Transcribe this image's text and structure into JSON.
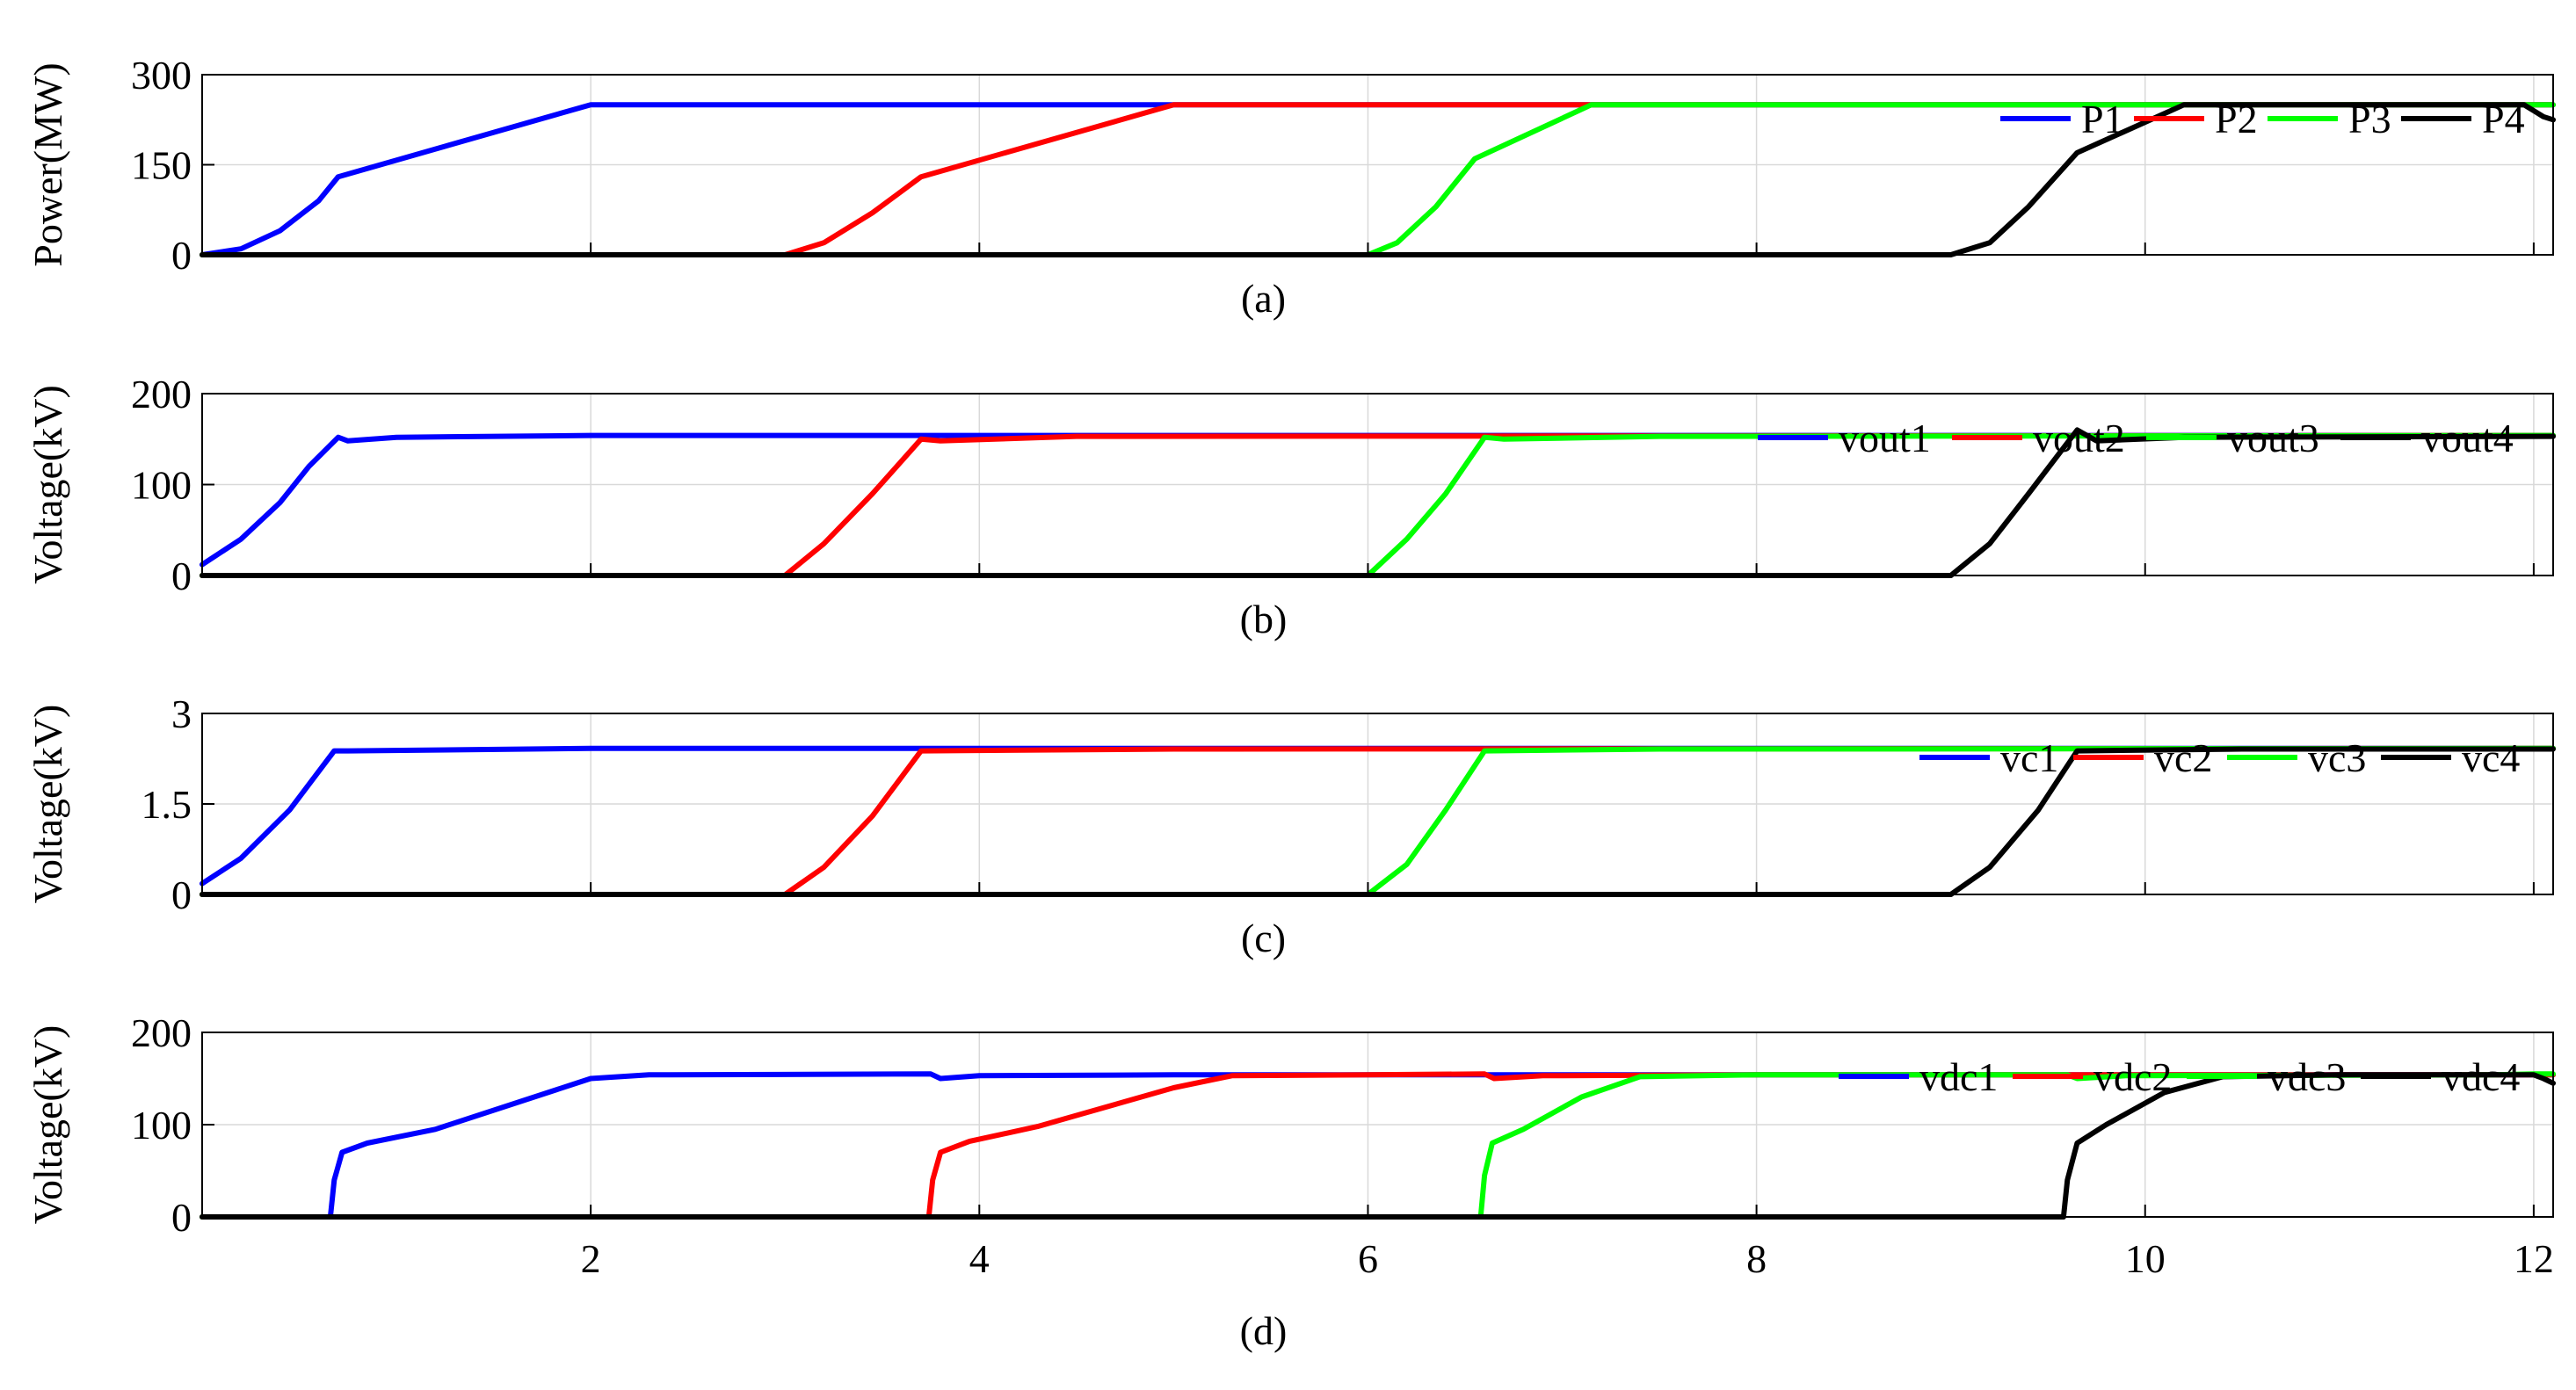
{
  "chart_data": [
    {
      "type": "line",
      "caption": "(a)",
      "ylabel": "Power(MW)",
      "xlim": [
        0,
        12.1
      ],
      "ylim": [
        0,
        300
      ],
      "yticks": [
        "0",
        "150",
        "300"
      ],
      "xticks": [],
      "grid": true,
      "legend_position": "top-right",
      "series": [
        {
          "name": "P1",
          "color": "#0000ff",
          "points": [
            [
              0,
              0
            ],
            [
              0.2,
              10
            ],
            [
              0.4,
              40
            ],
            [
              0.6,
              90
            ],
            [
              0.7,
              130
            ],
            [
              2.0,
              250
            ],
            [
              12.1,
              250
            ]
          ]
        },
        {
          "name": "P2",
          "color": "#ff0000",
          "points": [
            [
              0,
              0
            ],
            [
              3.0,
              0
            ],
            [
              3.2,
              20
            ],
            [
              3.45,
              70
            ],
            [
              3.7,
              130
            ],
            [
              5.0,
              250
            ],
            [
              12.1,
              250
            ]
          ]
        },
        {
          "name": "P3",
          "color": "#00ff00",
          "points": [
            [
              0,
              0
            ],
            [
              6.0,
              0
            ],
            [
              6.15,
              20
            ],
            [
              6.35,
              80
            ],
            [
              6.55,
              160
            ],
            [
              7.15,
              250
            ],
            [
              12.1,
              250
            ]
          ]
        },
        {
          "name": "P4",
          "color": "#000000",
          "points": [
            [
              0,
              0
            ],
            [
              9.0,
              0
            ],
            [
              9.2,
              20
            ],
            [
              9.4,
              80
            ],
            [
              9.65,
              170
            ],
            [
              10.2,
              250
            ],
            [
              11.95,
              250
            ],
            [
              12.0,
              240
            ],
            [
              12.05,
              230
            ],
            [
              12.1,
              225
            ]
          ]
        }
      ]
    },
    {
      "type": "line",
      "caption": "(b)",
      "ylabel": "Voltage(kV)",
      "xlim": [
        0,
        12.1
      ],
      "ylim": [
        0,
        200
      ],
      "yticks": [
        "0",
        "100",
        "200"
      ],
      "xticks": [],
      "grid": true,
      "legend_position": "top-right",
      "series": [
        {
          "name": "vout1",
          "color": "#0000ff",
          "points": [
            [
              0,
              12
            ],
            [
              0.2,
              40
            ],
            [
              0.4,
              80
            ],
            [
              0.55,
              120
            ],
            [
              0.7,
              152
            ],
            [
              0.75,
              148
            ],
            [
              1.0,
              152
            ],
            [
              2.0,
              154
            ],
            [
              12.1,
              154
            ]
          ]
        },
        {
          "name": "vout2",
          "color": "#ff0000",
          "points": [
            [
              0,
              0
            ],
            [
              3.0,
              0
            ],
            [
              3.2,
              35
            ],
            [
              3.45,
              90
            ],
            [
              3.7,
              150
            ],
            [
              3.8,
              148
            ],
            [
              4.5,
              153
            ],
            [
              12.1,
              154
            ]
          ]
        },
        {
          "name": "vout3",
          "color": "#00ff00",
          "points": [
            [
              0,
              0
            ],
            [
              6.0,
              0
            ],
            [
              6.2,
              40
            ],
            [
              6.4,
              90
            ],
            [
              6.6,
              152
            ],
            [
              6.7,
              150
            ],
            [
              7.5,
              153
            ],
            [
              12.1,
              154
            ]
          ]
        },
        {
          "name": "vout4",
          "color": "#000000",
          "points": [
            [
              0,
              0
            ],
            [
              9.0,
              0
            ],
            [
              9.2,
              35
            ],
            [
              9.4,
              90
            ],
            [
              9.65,
              160
            ],
            [
              9.75,
              148
            ],
            [
              10.2,
              152
            ],
            [
              12.1,
              153
            ]
          ]
        }
      ]
    },
    {
      "type": "line",
      "caption": "(c)",
      "ylabel": "Voltage(kV)",
      "xlim": [
        0,
        12.1
      ],
      "ylim": [
        0,
        3
      ],
      "yticks": [
        "0",
        "1.5",
        "3"
      ],
      "xticks": [],
      "grid": true,
      "legend_position": "top-right",
      "series": [
        {
          "name": "vc1",
          "color": "#0000ff",
          "points": [
            [
              0,
              0.18
            ],
            [
              0.2,
              0.6
            ],
            [
              0.45,
              1.4
            ],
            [
              0.68,
              2.38
            ],
            [
              0.75,
              2.38
            ],
            [
              2.0,
              2.42
            ],
            [
              12.1,
              2.42
            ]
          ]
        },
        {
          "name": "vc2",
          "color": "#ff0000",
          "points": [
            [
              0,
              0
            ],
            [
              3.0,
              0
            ],
            [
              3.2,
              0.45
            ],
            [
              3.45,
              1.3
            ],
            [
              3.7,
              2.38
            ],
            [
              5.0,
              2.41
            ],
            [
              12.1,
              2.42
            ]
          ]
        },
        {
          "name": "vc3",
          "color": "#00ff00",
          "points": [
            [
              0,
              0
            ],
            [
              6.0,
              0
            ],
            [
              6.2,
              0.5
            ],
            [
              6.4,
              1.4
            ],
            [
              6.6,
              2.38
            ],
            [
              7.5,
              2.41
            ],
            [
              12.1,
              2.42
            ]
          ]
        },
        {
          "name": "vc4",
          "color": "#000000",
          "points": [
            [
              0,
              0
            ],
            [
              9.0,
              0
            ],
            [
              9.2,
              0.45
            ],
            [
              9.45,
              1.4
            ],
            [
              9.65,
              2.38
            ],
            [
              10.5,
              2.41
            ],
            [
              12.1,
              2.41
            ]
          ]
        }
      ]
    },
    {
      "type": "line",
      "caption": "(d)",
      "ylabel": "Voltage(kV)",
      "xlim": [
        0,
        12.1
      ],
      "ylim": [
        0,
        200
      ],
      "yticks": [
        "0",
        "100",
        "200"
      ],
      "xticks": [
        "2",
        "4",
        "6",
        "8",
        "10",
        "12"
      ],
      "xtick_values": [
        2,
        4,
        6,
        8,
        10,
        12
      ],
      "grid": true,
      "legend_position": "top-right",
      "series": [
        {
          "name": "vdc1",
          "color": "#0000ff",
          "points": [
            [
              0,
              0
            ],
            [
              0.66,
              0
            ],
            [
              0.68,
              40
            ],
            [
              0.72,
              70
            ],
            [
              0.85,
              80
            ],
            [
              1.2,
              95
            ],
            [
              2.0,
              150
            ],
            [
              2.3,
              154
            ],
            [
              3.75,
              155
            ],
            [
              3.8,
              150
            ],
            [
              4.0,
              153
            ],
            [
              5.0,
              154
            ],
            [
              12.1,
              154
            ]
          ]
        },
        {
          "name": "vdc2",
          "color": "#ff0000",
          "points": [
            [
              0,
              0
            ],
            [
              3.74,
              0
            ],
            [
              3.76,
              40
            ],
            [
              3.8,
              70
            ],
            [
              3.95,
              82
            ],
            [
              4.3,
              98
            ],
            [
              5.0,
              140
            ],
            [
              5.3,
              153
            ],
            [
              6.6,
              155
            ],
            [
              6.65,
              150
            ],
            [
              6.9,
              153
            ],
            [
              8.0,
              154
            ],
            [
              12.1,
              154
            ]
          ]
        },
        {
          "name": "vdc3",
          "color": "#00ff00",
          "points": [
            [
              0,
              0
            ],
            [
              6.58,
              0
            ],
            [
              6.6,
              45
            ],
            [
              6.64,
              80
            ],
            [
              6.8,
              95
            ],
            [
              7.1,
              130
            ],
            [
              7.4,
              152
            ],
            [
              8.0,
              154
            ],
            [
              9.6,
              154
            ],
            [
              9.65,
              150
            ],
            [
              9.9,
              153
            ],
            [
              11.8,
              154
            ],
            [
              12.0,
              155
            ],
            [
              12.1,
              155
            ]
          ]
        },
        {
          "name": "vdc4",
          "color": "#000000",
          "points": [
            [
              0,
              0
            ],
            [
              9.58,
              0
            ],
            [
              9.6,
              40
            ],
            [
              9.65,
              80
            ],
            [
              9.8,
              100
            ],
            [
              10.1,
              135
            ],
            [
              10.4,
              152
            ],
            [
              11.0,
              154
            ],
            [
              12.0,
              154
            ],
            [
              12.05,
              150
            ],
            [
              12.1,
              145
            ]
          ]
        }
      ]
    }
  ]
}
